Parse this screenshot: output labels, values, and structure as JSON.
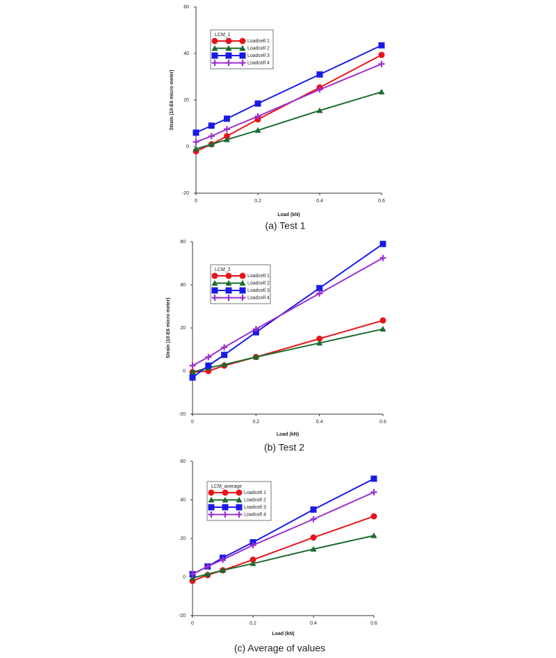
{
  "chart_data": [
    {
      "type": "line",
      "caption": "(a)  Test  1",
      "legend_title": "LCM_1",
      "xlabel": "Load (kN)",
      "ylabel": "Strain (10-E6 micro meter)",
      "x": [
        0,
        0.05,
        0.1,
        0.2,
        0.4,
        0.6
      ],
      "xlim": [
        0,
        0.6
      ],
      "xticks": [
        0,
        0.2,
        0.4,
        0.6
      ],
      "ylim": [
        -20,
        60
      ],
      "yticks": [
        -20,
        0,
        20,
        40,
        60
      ],
      "series": [
        {
          "name": "Loadcell 1",
          "color": "#e8141b",
          "marker": "circle",
          "values": [
            -2,
            1,
            4.5,
            11.7,
            25.4,
            39.4
          ]
        },
        {
          "name": "Loadcell 2",
          "color": "#1a6b2e",
          "marker": "triangle",
          "values": [
            -1,
            1,
            3,
            7,
            15.5,
            23.5
          ]
        },
        {
          "name": "Loadcell 3",
          "color": "#1a1ae6",
          "marker": "square",
          "values": [
            6,
            9,
            12,
            18.5,
            31,
            43.5
          ]
        },
        {
          "name": "Loadcell 4",
          "color": "#9b30d0",
          "marker": "plus",
          "values": [
            2,
            4.5,
            7.5,
            13,
            24.5,
            35.5
          ]
        }
      ]
    },
    {
      "type": "line",
      "caption": "(b)  Test  2",
      "legend_title": "LCM_2",
      "xlabel": "Load (kN)",
      "ylabel": "Strain (10-E6 micro meter)",
      "x": [
        0,
        0.05,
        0.1,
        0.2,
        0.4,
        0.6
      ],
      "xlim": [
        0,
        0.6
      ],
      "xticks": [
        0,
        0.2,
        0.4,
        0.6
      ],
      "ylim": [
        -20,
        60
      ],
      "yticks": [
        -20,
        0,
        20,
        40,
        60
      ],
      "series": [
        {
          "name": "Loadcell 1",
          "color": "#e8141b",
          "marker": "circle",
          "values": [
            -0.5,
            0,
            2.5,
            6.5,
            15,
            23.5
          ]
        },
        {
          "name": "Loadcell 2",
          "color": "#1a6b2e",
          "marker": "triangle",
          "values": [
            -0.5,
            1.5,
            3,
            6.5,
            13,
            19.5
          ]
        },
        {
          "name": "Loadcell 3",
          "color": "#1a1ae6",
          "marker": "square",
          "values": [
            -3,
            2.5,
            7.5,
            18,
            38.5,
            59
          ]
        },
        {
          "name": "Loadcell 4",
          "color": "#9b30d0",
          "marker": "plus",
          "values": [
            2.5,
            6.5,
            11,
            19.5,
            36,
            52.5
          ]
        }
      ]
    },
    {
      "type": "line",
      "caption": "(c)  Average  of  values",
      "legend_title": "LCM_average",
      "xlabel": "Load (kN)",
      "x": [
        0,
        0.05,
        0.1,
        0.2,
        0.4,
        0.6
      ],
      "xlim": [
        0,
        0.6
      ],
      "xticks": [
        0,
        0.2,
        0.4,
        0.6
      ],
      "ylim": [
        -20,
        60
      ],
      "yticks": [
        -20,
        0,
        20,
        40,
        60
      ],
      "series": [
        {
          "name": "Loadcell 1",
          "color": "#e8141b",
          "marker": "circle",
          "values": [
            -2,
            1,
            3.5,
            9,
            20.5,
            31.5
          ]
        },
        {
          "name": "Loadcell 2",
          "color": "#1a6b2e",
          "marker": "triangle",
          "values": [
            -0.5,
            1.5,
            3.5,
            7,
            14.5,
            21.5
          ]
        },
        {
          "name": "Loadcell 3",
          "color": "#1a1ae6",
          "marker": "square",
          "values": [
            1.5,
            5.5,
            10,
            18,
            35,
            51
          ]
        },
        {
          "name": "Loadcell 4",
          "color": "#9b30d0",
          "marker": "plus",
          "values": [
            1.5,
            5.5,
            9,
            16.5,
            30,
            44
          ]
        }
      ]
    }
  ]
}
